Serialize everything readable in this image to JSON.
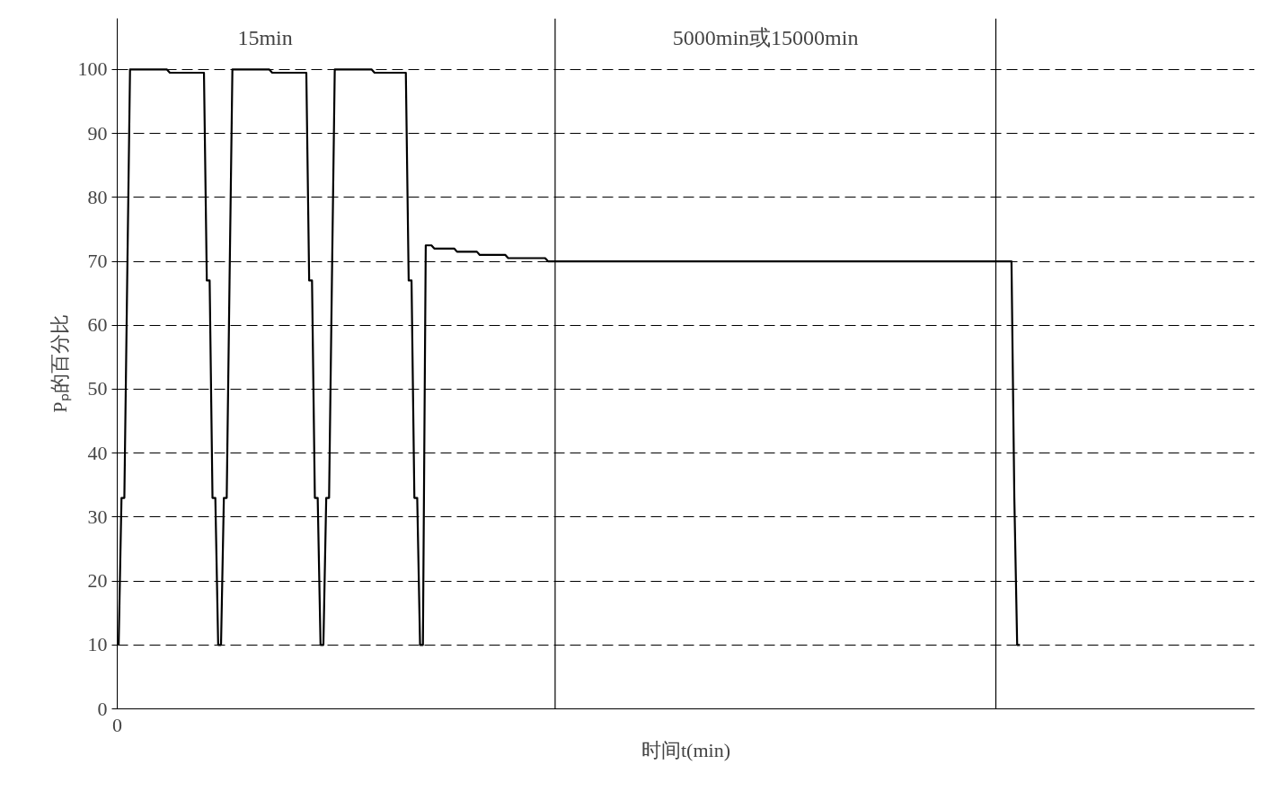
{
  "chart_data": {
    "type": "line",
    "xlabel": "时间t(min)",
    "ylabel": "Pₚ的百分比",
    "categories": [
      null,
      null,
      null,
      null,
      null,
      null,
      null,
      null,
      null,
      null,
      null,
      null,
      null,
      null,
      null,
      null,
      null,
      null,
      null,
      null,
      null,
      null,
      null,
      null,
      null,
      null,
      null,
      null,
      null,
      null,
      null,
      null,
      null,
      null,
      null,
      null,
      null,
      null,
      null,
      null,
      null,
      null,
      null,
      null,
      null,
      null,
      null,
      null,
      null,
      null,
      null,
      null,
      null,
      null,
      null,
      null,
      null,
      null,
      null,
      null,
      null,
      null,
      null,
      null,
      null,
      null,
      null,
      null,
      null,
      null,
      null,
      null,
      null,
      null,
      null,
      null,
      null,
      null,
      null,
      null,
      null,
      null,
      null,
      null,
      null,
      null,
      null,
      null,
      null,
      null,
      null,
      null,
      null,
      null,
      null,
      null,
      null,
      null,
      null,
      null,
      null,
      null,
      null,
      null,
      null,
      null,
      null,
      null,
      null,
      null,
      null,
      null,
      null,
      null,
      null,
      null,
      null,
      null,
      null,
      null,
      null,
      null,
      null,
      null,
      null,
      null,
      null,
      null,
      null,
      null,
      null,
      null,
      null,
      null,
      null,
      null,
      null,
      null,
      null,
      null,
      null,
      null,
      null,
      null,
      null,
      null,
      null,
      null,
      null,
      null,
      null,
      null,
      null,
      null,
      null,
      null,
      null,
      null,
      null,
      null,
      null,
      null,
      null,
      null,
      null,
      null,
      null,
      null,
      null,
      null,
      null,
      null,
      null,
      null,
      null,
      null,
      null,
      null,
      null,
      null,
      null,
      null,
      null,
      null,
      null,
      null,
      null,
      null,
      null,
      null,
      null,
      null,
      null,
      null,
      null,
      null,
      null,
      null,
      null,
      null,
      null,
      null,
      null,
      null,
      null,
      null,
      null,
      null,
      null,
      null,
      null,
      null,
      null,
      null,
      null,
      null,
      null,
      null,
      null,
      null,
      null,
      null,
      null,
      null,
      null,
      null,
      null,
      null,
      null,
      null,
      null,
      null,
      null,
      null,
      null,
      null,
      null,
      null,
      null,
      null,
      null,
      null,
      null,
      null,
      null,
      null,
      null,
      null,
      null,
      null,
      null,
      null,
      null,
      null,
      null,
      null,
      null,
      null,
      null,
      null,
      null,
      null,
      null,
      null,
      null,
      null,
      null,
      null,
      null,
      null,
      null,
      null,
      null,
      null,
      null,
      null,
      null,
      null,
      null,
      null,
      null,
      null,
      null,
      null,
      null,
      null,
      null,
      null,
      null,
      null,
      null,
      null,
      null,
      null,
      null,
      null,
      null,
      null,
      null,
      null,
      null,
      null,
      null,
      null,
      null,
      null,
      null,
      null,
      null,
      null,
      null,
      null,
      null,
      null,
      null,
      null,
      null,
      null,
      null,
      null,
      null,
      null,
      null,
      null,
      null,
      null,
      null,
      null,
      null,
      null,
      null,
      null,
      null,
      null,
      null,
      null,
      null,
      null,
      null,
      null,
      null,
      null,
      null,
      null,
      null,
      null,
      null,
      null,
      null,
      null,
      null,
      null,
      null,
      null,
      null,
      null,
      null,
      null,
      null,
      null,
      null,
      null,
      null,
      null,
      null,
      null,
      null,
      null,
      null,
      null,
      null,
      null,
      null,
      null,
      null,
      null,
      null,
      null,
      null,
      null,
      null,
      null,
      null,
      null,
      null,
      null,
      null,
      null,
      null,
      null,
      null,
      null,
      null,
      null,
      null,
      null,
      null,
      null,
      null,
      null
    ],
    "series": [
      {
        "color": "#000000",
        "values": [
          10,
          33,
          33,
          67,
          100,
          100,
          100,
          100,
          100,
          100,
          100,
          100,
          100,
          100,
          100,
          100,
          100,
          100,
          99.5,
          99.5,
          99.5,
          99.5,
          99.5,
          99.5,
          99.5,
          99.5,
          99.5,
          99.5,
          99.5,
          99.5,
          99.5,
          67,
          67,
          33,
          33,
          10,
          10,
          33,
          33,
          67,
          100,
          100,
          100,
          100,
          100,
          100,
          100,
          100,
          100,
          100,
          100,
          100,
          100,
          100,
          99.5,
          99.5,
          99.5,
          99.5,
          99.5,
          99.5,
          99.5,
          99.5,
          99.5,
          99.5,
          99.5,
          99.5,
          99.5,
          67,
          67,
          33,
          33,
          10,
          10,
          33,
          33,
          67,
          100,
          100,
          100,
          100,
          100,
          100,
          100,
          100,
          100,
          100,
          100,
          100,
          100,
          100,
          99.5,
          99.5,
          99.5,
          99.5,
          99.5,
          99.5,
          99.5,
          99.5,
          99.5,
          99.5,
          99.5,
          99.5,
          67,
          67,
          33,
          33,
          10,
          10,
          72.5,
          72.5,
          72.5,
          72,
          72,
          72,
          72,
          72,
          72,
          72,
          72,
          71.5,
          71.5,
          71.5,
          71.5,
          71.5,
          71.5,
          71.5,
          71.5,
          71,
          71,
          71,
          71,
          71,
          71,
          71,
          71,
          71,
          71,
          70.5,
          70.5,
          70.5,
          70.5,
          70.5,
          70.5,
          70.5,
          70.5,
          70.5,
          70.5,
          70.5,
          70.5,
          70.5,
          70.5,
          70,
          70,
          70,
          70,
          70,
          70,
          70,
          70,
          70,
          70,
          70,
          70,
          70,
          70,
          70,
          70,
          70,
          70,
          70,
          70,
          70,
          70,
          70,
          70,
          70,
          70,
          70,
          70,
          70,
          70,
          70,
          70,
          70,
          70,
          70,
          70,
          70,
          70,
          70,
          70,
          70,
          70,
          70,
          70,
          70,
          70,
          70,
          70,
          70,
          70,
          70,
          70,
          70,
          70,
          70,
          70,
          70,
          70,
          70,
          70,
          70,
          70,
          70,
          70,
          70,
          70,
          70,
          70,
          70,
          70,
          70,
          70,
          70,
          70,
          70,
          70,
          70,
          70,
          70,
          70,
          70,
          70,
          70,
          70,
          70,
          70,
          70,
          70,
          70,
          70,
          70,
          70,
          70,
          70,
          70,
          70,
          70,
          70,
          70,
          70,
          70,
          70,
          70,
          70,
          70,
          70,
          70,
          70,
          70,
          70,
          70,
          70,
          70,
          70,
          70,
          70,
          70,
          70,
          70,
          70,
          70,
          70,
          70,
          70,
          70,
          70,
          70,
          70,
          70,
          70,
          70,
          70,
          70,
          70,
          70,
          70,
          70,
          70,
          70,
          70,
          70,
          70,
          70,
          70,
          70,
          70,
          70,
          70,
          70,
          70,
          70,
          70,
          70,
          70,
          70,
          70,
          70,
          70,
          70,
          70,
          70,
          70,
          70,
          70,
          33,
          10,
          10,
          null,
          null,
          null,
          null,
          null,
          null,
          null,
          null,
          null,
          null,
          null,
          null,
          null,
          null,
          null,
          null,
          null,
          null,
          null,
          null,
          null,
          null,
          null,
          null,
          null,
          null,
          null,
          null,
          null,
          null,
          null,
          null,
          null,
          null,
          null,
          null,
          null,
          null,
          null,
          null,
          null,
          null,
          null,
          null,
          null,
          null,
          null,
          null,
          null,
          null,
          null,
          null,
          null,
          null,
          null,
          null,
          null,
          null,
          null,
          null,
          null,
          null,
          null,
          null,
          null,
          null,
          null,
          null,
          null,
          null,
          null,
          null,
          null,
          null,
          null,
          null,
          null,
          null,
          null,
          null,
          null,
          null
        ]
      }
    ],
    "ylim": [
      0,
      108
    ],
    "yticks": [
      0,
      10,
      20,
      30,
      40,
      50,
      60,
      70,
      80,
      90,
      100
    ],
    "tick_labels": "y",
    "grid": "y",
    "line_style": "solid",
    "annotations": [
      "15min",
      "5000min或15000min",
      "0"
    ]
  }
}
